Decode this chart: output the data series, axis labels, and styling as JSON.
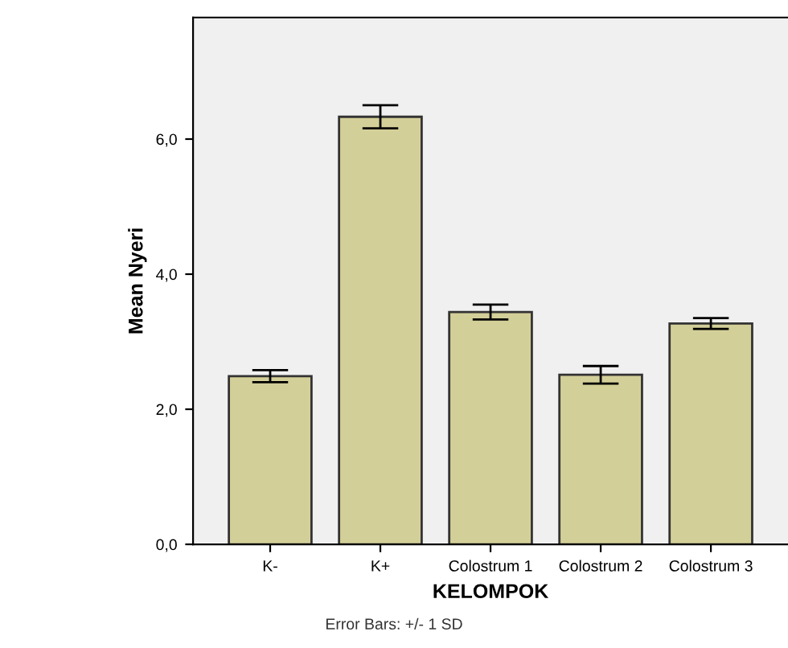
{
  "chart_data": {
    "type": "bar",
    "xlabel": "KELOMPOK",
    "ylabel": "Mean Nyeri",
    "categories": [
      "K-",
      "K+",
      "Colostrum 1",
      "Colostrum 2",
      "Colostrum 3"
    ],
    "values": [
      2.49,
      6.33,
      3.44,
      2.51,
      3.27
    ],
    "errors": [
      0.09,
      0.17,
      0.11,
      0.13,
      0.08
    ],
    "color": "#d3cf98",
    "ylim": [
      0,
      7.8
    ],
    "yticks": [
      {
        "value": 0,
        "label": "0,0"
      },
      {
        "value": 2,
        "label": "2,0"
      },
      {
        "value": 4,
        "label": "4,0"
      },
      {
        "value": 6,
        "label": "6,0"
      }
    ],
    "grid": false,
    "annotations": [
      "Error Bars: +/- 1 SD"
    ]
  }
}
